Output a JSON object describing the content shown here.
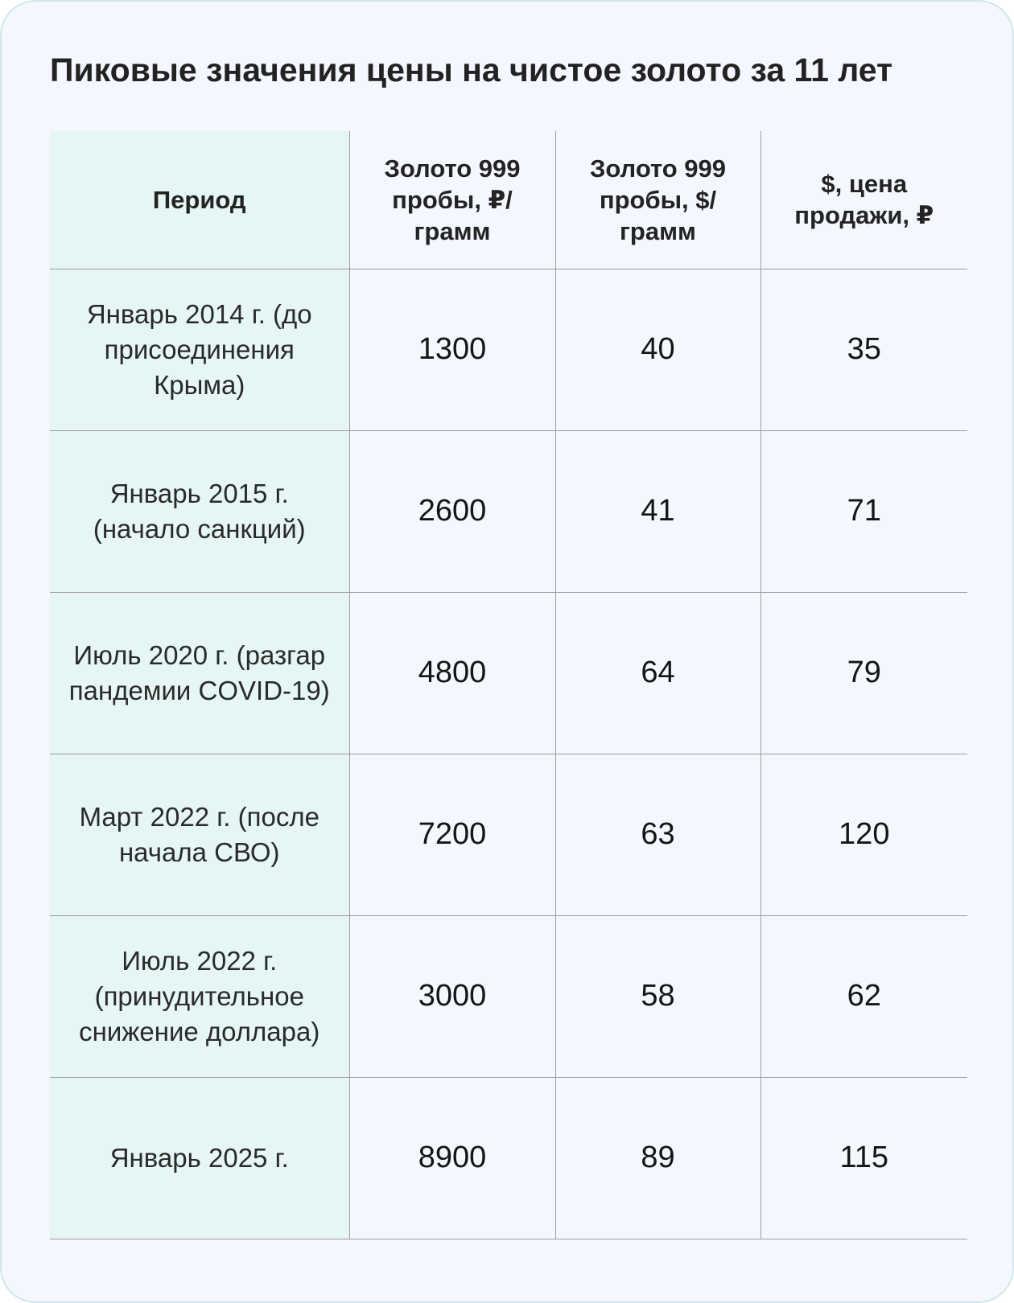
{
  "title": "Пиковые значения цены на чистое золото за 11 лет",
  "table": {
    "headers": [
      "Период",
      "Золото 999 пробы, ₽/грамм",
      "Золото 999 пробы, $/грамм",
      "$, цена продажи, ₽"
    ],
    "rows": [
      {
        "period": "Январь 2014 г. (до присоединения Крыма)",
        "rub_per_gram": "1300",
        "usd_per_gram": "40",
        "usd_rate": "35"
      },
      {
        "period": "Январь 2015 г. (начало санкций)",
        "rub_per_gram": "2600",
        "usd_per_gram": "41",
        "usd_rate": "71"
      },
      {
        "period": "Июль 2020 г. (разгар пандемии COVID-19)",
        "rub_per_gram": "4800",
        "usd_per_gram": "64",
        "usd_rate": "79"
      },
      {
        "period": "Март 2022 г. (после начала СВО)",
        "rub_per_gram": "7200",
        "usd_per_gram": "63",
        "usd_rate": "120"
      },
      {
        "period": "Июль 2022 г. (принудительное снижение доллара)",
        "rub_per_gram": "3000",
        "usd_per_gram": "58",
        "usd_rate": "62"
      },
      {
        "period": "Январь 2025 г.",
        "rub_per_gram": "8900",
        "usd_per_gram": "89",
        "usd_rate": "115"
      }
    ]
  }
}
